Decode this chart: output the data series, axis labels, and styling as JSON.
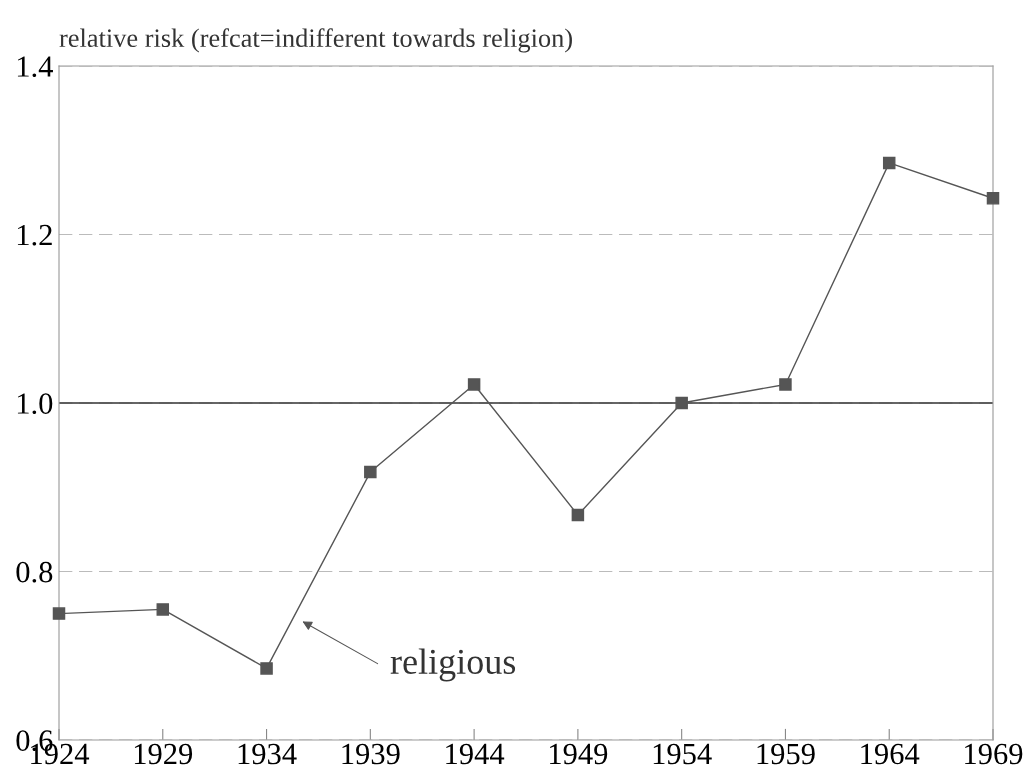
{
  "chart_data": {
    "type": "line",
    "ylabel": "relative risk (refcat=indifferent towards religion)",
    "x": [
      1924,
      1929,
      1934,
      1939,
      1944,
      1949,
      1954,
      1959,
      1964,
      1969
    ],
    "series": [
      {
        "color": "#555555",
        "values": [
          0.75,
          0.755,
          0.685,
          0.918,
          1.022,
          0.867,
          1.0,
          1.022,
          1.285,
          1.243
        ]
      }
    ],
    "xlim": [
      1924,
      1969
    ],
    "xticks": [
      1924,
      1929,
      1934,
      1939,
      1944,
      1949,
      1954,
      1959,
      1964,
      1969
    ],
    "ylim": [
      0.6,
      1.4
    ],
    "yticks": [
      {
        "value": 0.6,
        "label": "0.6"
      },
      {
        "value": 0.8,
        "label": "0.8"
      },
      {
        "value": 1.0,
        "label": "1.0"
      },
      {
        "value": 1.2,
        "label": "1.2"
      },
      {
        "value": 1.4,
        "label": "1.4"
      }
    ],
    "grid": "y",
    "marker": "square",
    "line_style": "solid",
    "ref_lines": [
      {
        "axis": "y",
        "value": 1.0,
        "color": "#333333",
        "line_style": "solid"
      }
    ],
    "annotations": [
      "religious"
    ]
  }
}
